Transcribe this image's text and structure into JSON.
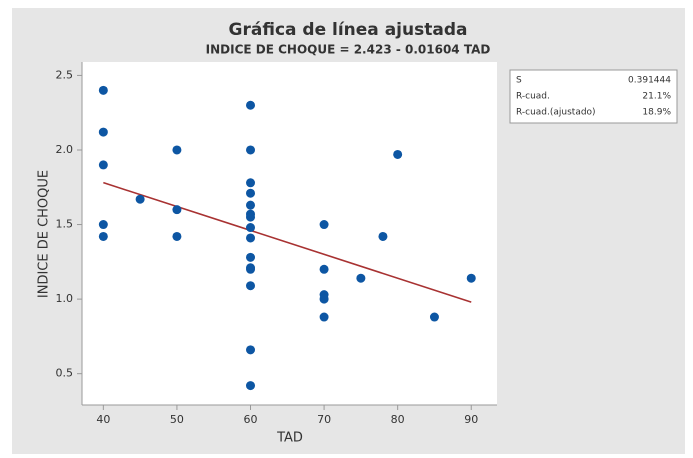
{
  "chart_data": {
    "type": "scatter",
    "title": "Gráfica de línea ajustada",
    "subtitle": "INDICE DE CHOQUE = 2.423 - 0.01604 TAD",
    "x_label": "TAD",
    "y_label": "INDICE DE CHOQUE",
    "x": [
      40,
      40,
      40,
      40,
      40,
      45,
      50,
      50,
      50,
      60,
      60,
      60,
      60,
      60,
      60,
      60,
      60,
      60,
      60,
      60,
      60,
      60,
      60,
      60,
      70,
      70,
      70,
      70,
      70,
      75,
      78,
      80,
      85,
      90
    ],
    "values": [
      2.4,
      2.12,
      1.9,
      1.5,
      1.42,
      1.67,
      2.0,
      1.6,
      1.42,
      2.3,
      2.0,
      1.78,
      1.71,
      1.63,
      1.57,
      1.55,
      1.48,
      1.41,
      1.28,
      1.21,
      1.2,
      1.09,
      0.66,
      0.42,
      1.5,
      1.2,
      1.03,
      1.0,
      0.88,
      1.14,
      1.42,
      1.97,
      0.88,
      1.14
    ],
    "color": "#0d56a3",
    "fit": {
      "x": [
        40,
        90
      ],
      "values": [
        1.781,
        0.98
      ],
      "color": "#a83232"
    },
    "xlim": [
      37.1,
      93.5
    ],
    "ylim": [
      0.29,
      2.59
    ],
    "xticks": [
      40,
      50,
      60,
      70,
      80,
      90
    ],
    "yticks": [
      0.5,
      {
        "value": 1,
        "label": "1.0"
      },
      1.5,
      {
        "value": 2,
        "label": "2.0"
      },
      2.5
    ],
    "stats": [
      {
        "label": "S",
        "value": "0.391444"
      },
      {
        "label": "R-cuad.",
        "value": "21.1%"
      },
      {
        "label": "R-cuad.(ajustado)",
        "value": "18.9%"
      }
    ]
  }
}
